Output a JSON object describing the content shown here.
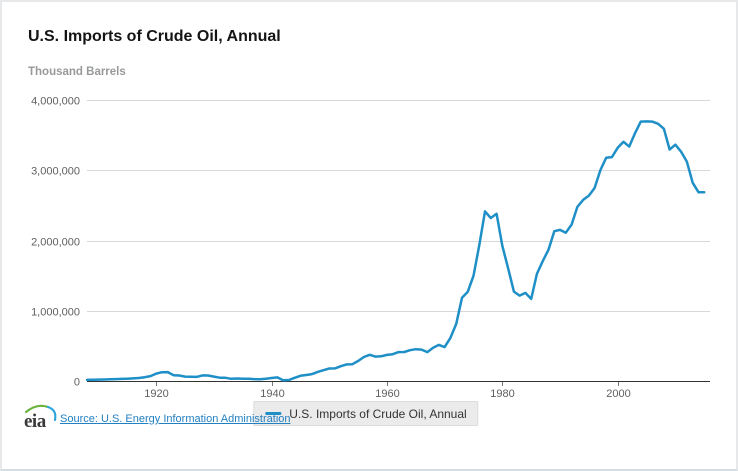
{
  "header": {
    "title": "U.S. Imports of Crude Oil, Annual",
    "units_label": "Thousand Barrels"
  },
  "chart_data": {
    "type": "line",
    "title": "U.S. Imports of Crude Oil, Annual",
    "ylabel": "Thousand Barrels",
    "xlim": [
      1908,
      2016
    ],
    "ylim": [
      0,
      4000000
    ],
    "grid": "horizontal-only",
    "legend_position": "bottom-center",
    "x_ticks": [
      "1920",
      "1940",
      "1960",
      "1980",
      "2000"
    ],
    "y_ticks": [
      {
        "value": 0,
        "label": "0"
      },
      {
        "value": 1000000,
        "label": "1,000,000"
      },
      {
        "value": 2000000,
        "label": "2,000,000"
      },
      {
        "value": 3000000,
        "label": "3,000,000"
      },
      {
        "value": 4000000,
        "label": "4,000,000"
      }
    ],
    "x": [
      1908,
      1909,
      1910,
      1911,
      1912,
      1913,
      1914,
      1915,
      1916,
      1917,
      1918,
      1919,
      1920,
      1921,
      1922,
      1923,
      1924,
      1925,
      1926,
      1927,
      1928,
      1929,
      1930,
      1931,
      1932,
      1933,
      1934,
      1935,
      1936,
      1937,
      1938,
      1939,
      1940,
      1941,
      1942,
      1943,
      1944,
      1945,
      1946,
      1947,
      1948,
      1949,
      1950,
      1951,
      1952,
      1953,
      1954,
      1955,
      1956,
      1957,
      1958,
      1959,
      1960,
      1961,
      1962,
      1963,
      1964,
      1965,
      1966,
      1967,
      1968,
      1969,
      1970,
      1971,
      1972,
      1973,
      1974,
      1975,
      1976,
      1977,
      1978,
      1979,
      1980,
      1981,
      1982,
      1983,
      1984,
      1985,
      1986,
      1987,
      1988,
      1989,
      1990,
      1991,
      1992,
      1993,
      1994,
      1995,
      1996,
      1997,
      1998,
      1999,
      2000,
      2001,
      2002,
      2003,
      2004,
      2005,
      2006,
      2007,
      2008,
      2009,
      2010,
      2011,
      2012,
      2013,
      2014,
      2015
    ],
    "series": [
      {
        "name": "U.S. Imports of Crude Oil, Annual",
        "color": "#1f8fc7",
        "values": [
          15000,
          17000,
          20000,
          22000,
          24000,
          27000,
          30000,
          33000,
          37000,
          42000,
          54000,
          70000,
          106000,
          125000,
          127000,
          82000,
          78000,
          62000,
          60000,
          58000,
          80000,
          79000,
          62000,
          47000,
          45000,
          32000,
          36000,
          32000,
          33000,
          27000,
          26000,
          33000,
          43000,
          51000,
          12000,
          14000,
          45000,
          74000,
          86000,
          98000,
          129000,
          154000,
          178000,
          179000,
          210000,
          236000,
          239000,
          285000,
          342000,
          373000,
          348000,
          352000,
          372000,
          381000,
          411000,
          413000,
          439000,
          452000,
          447000,
          412000,
          472000,
          514000,
          483000,
          613000,
          811000,
          1184000,
          1269000,
          1498000,
          1935000,
          2414000,
          2320000,
          2380000,
          1926000,
          1605000,
          1273000,
          1215000,
          1254000,
          1168000,
          1525000,
          1706000,
          1869000,
          2133000,
          2151000,
          2111000,
          2226000,
          2477000,
          2578000,
          2639000,
          2748000,
          3002000,
          3178000,
          3187000,
          3320000,
          3405000,
          3336000,
          3528000,
          3692000,
          3696000,
          3693000,
          3661000,
          3590000,
          3295000,
          3363000,
          3261000,
          3120000,
          2821000,
          2687000,
          2688000
        ]
      }
    ]
  },
  "legend": {
    "items": [
      {
        "label": "U.S. Imports of Crude Oil, Annual",
        "color": "#1f8fc7"
      }
    ]
  },
  "footer": {
    "logo_text": "eia",
    "source_link": "Source: U.S. Energy Information Administration",
    "link_color": "#2380c2"
  },
  "colors": {
    "line": "#1f8fc7",
    "gridline": "#d8d8d8",
    "axis": "#333333",
    "tick_label": "#606060",
    "legend_bg": "#ebebeb",
    "title": "#141414",
    "units": "#97999b"
  }
}
